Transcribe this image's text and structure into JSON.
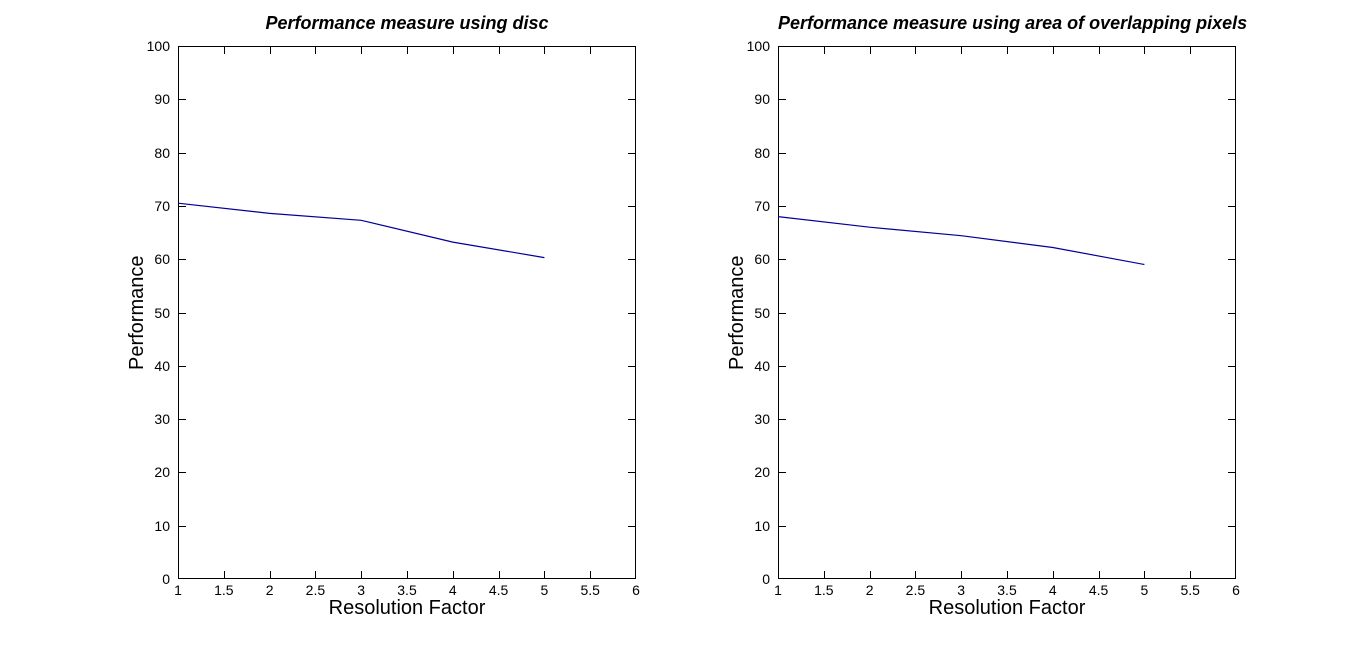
{
  "page": {
    "background": "#ffffff",
    "text_color": "#000000"
  },
  "chart_data": [
    {
      "type": "line",
      "title": "Performance measure using disc",
      "xlabel": "Resolution Factor",
      "ylabel": "Performance",
      "x": [
        1,
        2,
        3,
        4,
        5
      ],
      "series": [
        {
          "name": "performance",
          "values": [
            70.5,
            68.6,
            67.3,
            63.2,
            60.3
          ]
        }
      ],
      "xlim": [
        1,
        6
      ],
      "ylim": [
        0,
        100
      ],
      "x_ticks": [
        1,
        1.5,
        2,
        2.5,
        3,
        3.5,
        4,
        4.5,
        5,
        5.5,
        6
      ],
      "y_ticks": [
        0,
        10,
        20,
        30,
        40,
        50,
        60,
        70,
        80,
        90,
        100
      ],
      "grid": false,
      "legend": "none",
      "line_color": "#000099",
      "axis_color": "#000000"
    },
    {
      "type": "line",
      "title": "Performance measure using area of overlapping pixels",
      "xlabel": "Resolution Factor",
      "ylabel": "Performance",
      "x": [
        1,
        2,
        3,
        4,
        5
      ],
      "series": [
        {
          "name": "performance",
          "values": [
            68.0,
            66.0,
            64.4,
            62.2,
            59.0
          ]
        }
      ],
      "xlim": [
        1,
        6
      ],
      "ylim": [
        0,
        100
      ],
      "x_ticks": [
        1,
        1.5,
        2,
        2.5,
        3,
        3.5,
        4,
        4.5,
        5,
        5.5,
        6
      ],
      "y_ticks": [
        0,
        10,
        20,
        30,
        40,
        50,
        60,
        70,
        80,
        90,
        100
      ],
      "grid": false,
      "legend": "none",
      "line_color": "#000099",
      "axis_color": "#000000"
    }
  ]
}
